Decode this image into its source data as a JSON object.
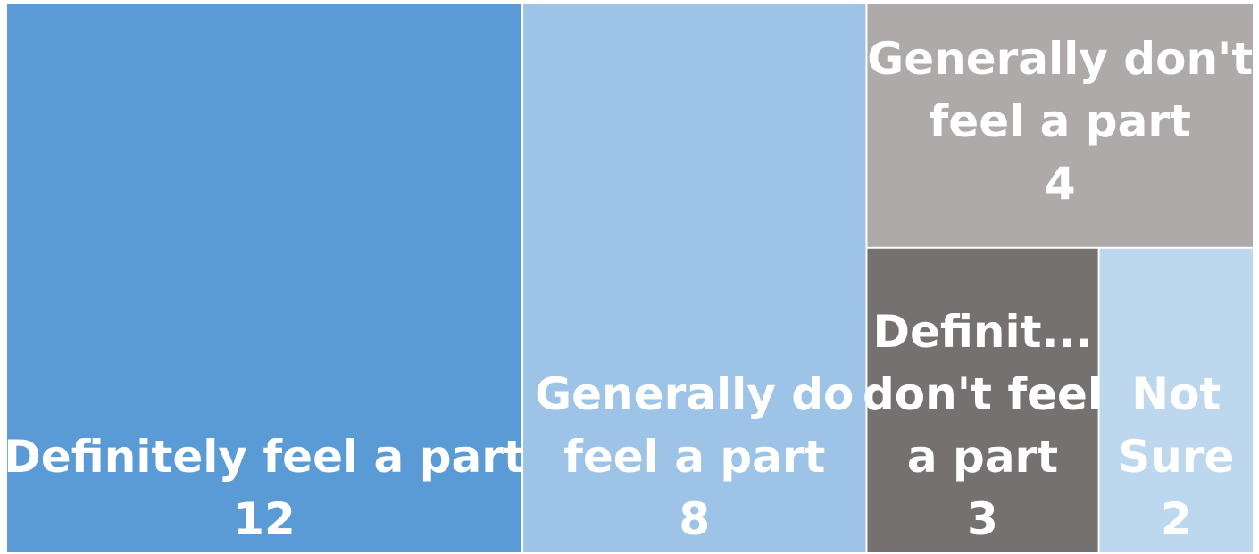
{
  "chart_data": {
    "type": "treemap",
    "categories": [
      "Definitely feel a part",
      "Generally do feel a part",
      "Generally don't feel a part",
      "Definitely don't feel a part",
      "Not Sure"
    ],
    "values": [
      12,
      8,
      4,
      3,
      2
    ],
    "tiles": [
      {
        "label_lines": [
          "Definitely feel a part"
        ],
        "value": 12,
        "color": "#5B9BD5"
      },
      {
        "label_lines": [
          "Generally do",
          "feel a part"
        ],
        "value": 8,
        "color": "#9DC3E6"
      },
      {
        "label_lines": [
          "Generally don't",
          "feel a part"
        ],
        "value": 4,
        "color": "#AEAAAA"
      },
      {
        "label_lines": [
          "Definit...",
          "don't feel",
          "a part"
        ],
        "value": 3,
        "color": "#767171"
      },
      {
        "label_lines": [
          "Not",
          "Sure"
        ],
        "value": 2,
        "color": "#BDD7EE"
      }
    ]
  }
}
